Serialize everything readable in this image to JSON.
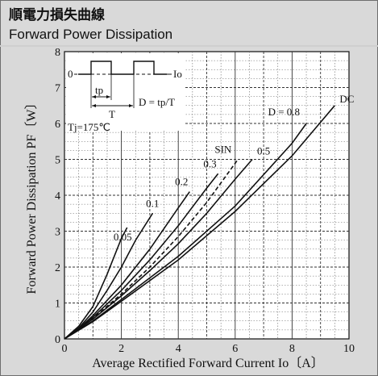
{
  "header": {
    "title_jp": "順電力損失曲線",
    "title_en": "Forward Power Dissipation"
  },
  "colors": {
    "panel_bg": "#d9d9d9",
    "plot_bg": "#ffffff",
    "curve": "#111111",
    "grid": "#666666"
  },
  "inset": {
    "zero_label": "0",
    "io_label": "Io",
    "tp_label": "tp",
    "t_label": "T",
    "formula": "D = tp/T"
  },
  "chart_data": {
    "type": "line",
    "title": "Forward Power Dissipation",
    "xlabel": "Average Rectified Forward Current  Io〔A〕",
    "ylabel": "Forward Power Dissipation  PF〔W〕",
    "xlim": [
      0,
      10
    ],
    "ylim": [
      0,
      8
    ],
    "x_ticks": [
      0,
      2,
      4,
      6,
      8,
      10
    ],
    "y_ticks": [
      0,
      1,
      2,
      3,
      4,
      5,
      6,
      7,
      8
    ],
    "x_ticks_labels": [
      "0",
      "2",
      "4",
      "6",
      "8",
      "10"
    ],
    "y_ticks_labels": [
      "0",
      "1",
      "2",
      "3",
      "4",
      "5",
      "6",
      "7",
      "8"
    ],
    "grid": true,
    "annotation": "Tj=175℃",
    "series": [
      {
        "name": "0.05",
        "dashed": false,
        "x": [
          0,
          0.5,
          1.0,
          1.5,
          2.0,
          2.2
        ],
        "y": [
          0,
          0.35,
          0.9,
          1.8,
          2.8,
          3.1
        ]
      },
      {
        "name": "0.1",
        "dashed": false,
        "x": [
          0,
          0.5,
          1.0,
          1.5,
          2.0,
          2.5,
          3.1
        ],
        "y": [
          0,
          0.3,
          0.75,
          1.35,
          2.0,
          2.75,
          3.5
        ]
      },
      {
        "name": "0.2",
        "dashed": false,
        "x": [
          0,
          0.5,
          1.0,
          2.0,
          3.0,
          4.0,
          4.4
        ],
        "y": [
          0,
          0.28,
          0.65,
          1.5,
          2.5,
          3.65,
          4.1
        ]
      },
      {
        "name": "0.3",
        "dashed": false,
        "x": [
          0,
          1.0,
          2.0,
          3.0,
          4.0,
          5.0,
          5.4
        ],
        "y": [
          0,
          0.6,
          1.35,
          2.2,
          3.15,
          4.2,
          4.6
        ]
      },
      {
        "name": "SIN",
        "dashed": true,
        "x": [
          0,
          1.0,
          2.0,
          3.0,
          4.0,
          5.0,
          6.1
        ],
        "y": [
          0,
          0.57,
          1.25,
          2.0,
          2.85,
          3.8,
          5.0
        ]
      },
      {
        "name": "0.5",
        "dashed": false,
        "x": [
          0,
          1.0,
          2.0,
          3.0,
          4.0,
          5.0,
          6.0,
          6.6
        ],
        "y": [
          0,
          0.55,
          1.2,
          1.9,
          2.65,
          3.5,
          4.45,
          5.0
        ]
      },
      {
        "name": "D = 0.8",
        "dashed": false,
        "x": [
          0,
          1.0,
          2.0,
          4.0,
          6.0,
          8.0,
          8.5
        ],
        "y": [
          0,
          0.5,
          1.1,
          2.3,
          3.7,
          5.45,
          6.0
        ]
      },
      {
        "name": "DC",
        "dashed": false,
        "x": [
          0,
          1.0,
          2.0,
          4.0,
          6.0,
          8.0,
          9.5
        ],
        "y": [
          0,
          0.48,
          1.05,
          2.2,
          3.55,
          5.1,
          6.5
        ]
      }
    ]
  }
}
